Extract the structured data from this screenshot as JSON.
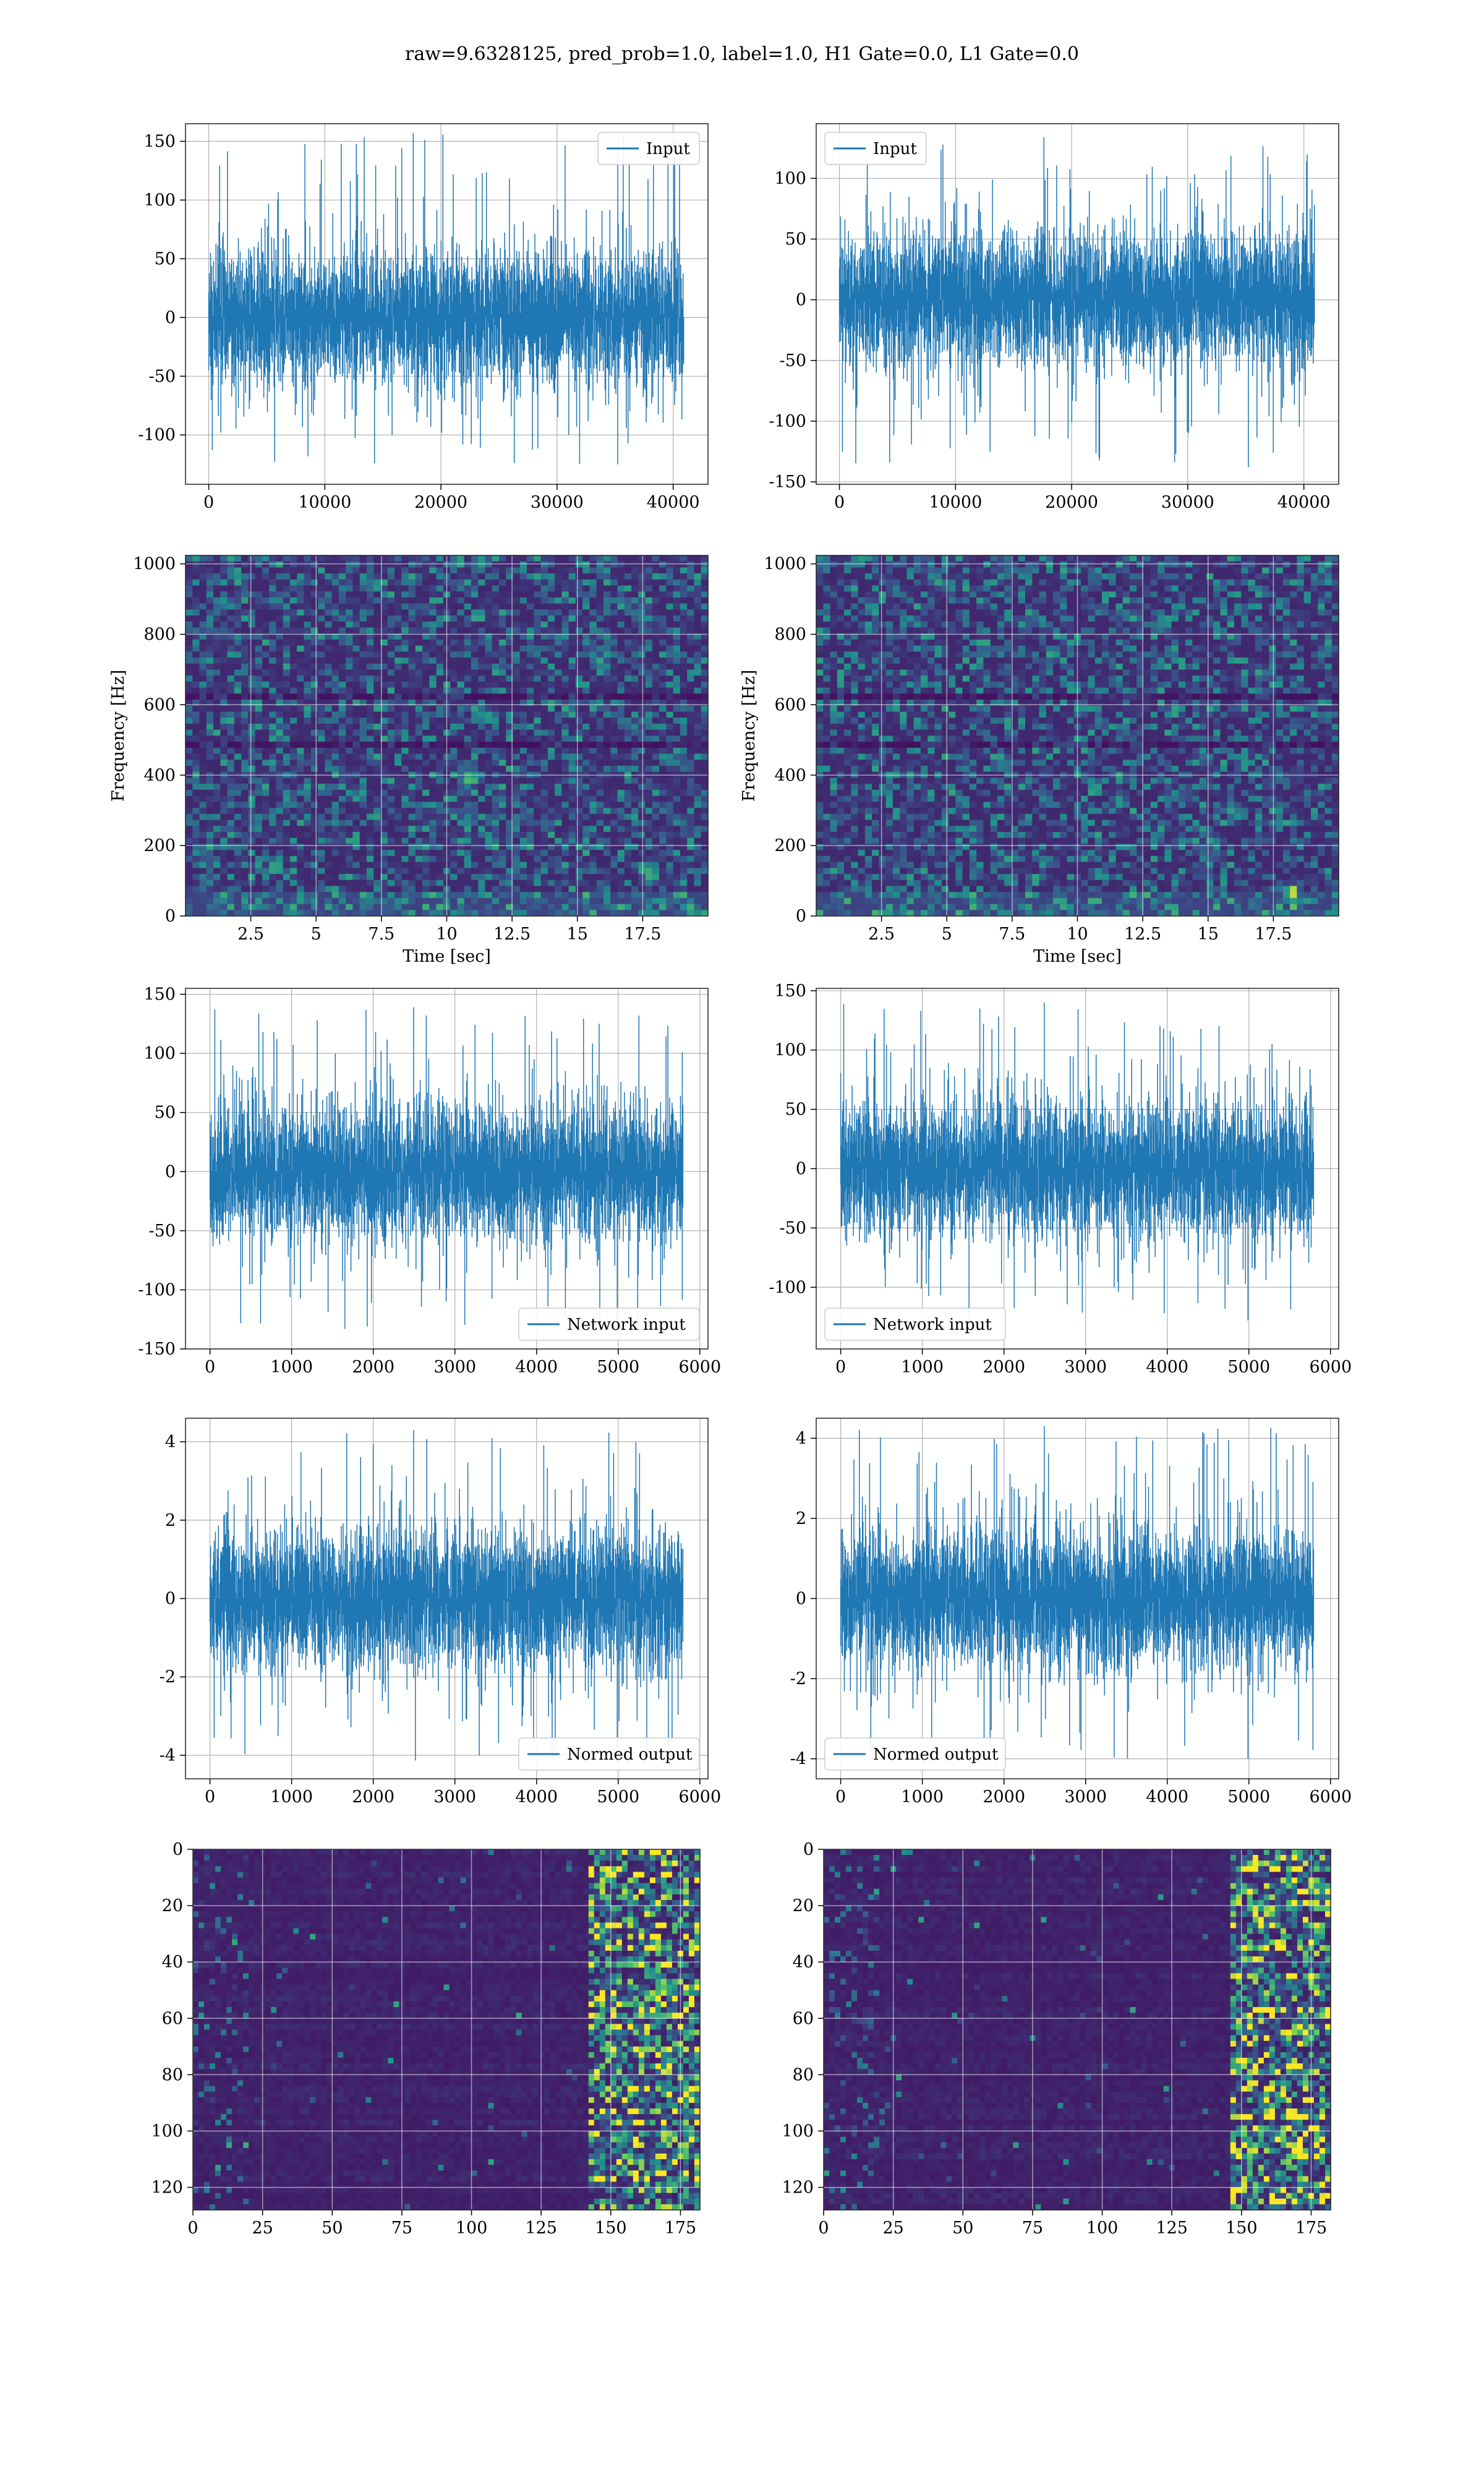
{
  "title": "raw=9.6328125, pred_prob=1.0, label=1.0, H1 Gate=0.0, L1 Gate=0.0",
  "colors": {
    "line": "#1f77b4",
    "grid": "#b0b0b0",
    "viridis": [
      "#440154",
      "#3b528b",
      "#21918c",
      "#5ec962",
      "#fde725"
    ]
  },
  "chart_data": [
    {
      "id": "input-h1",
      "type": "line",
      "col": 0,
      "row": 0,
      "series": [
        {
          "name": "Input",
          "n": 40960,
          "amplitude": 28,
          "min": -125,
          "max": 157
        }
      ],
      "xlim": [
        -2000,
        43000
      ],
      "ylim": [
        -142,
        165
      ],
      "xticks": [
        0,
        10000,
        20000,
        30000,
        40000
      ],
      "yticks": [
        -100,
        -50,
        0,
        50,
        100,
        150
      ],
      "legend": "top-right",
      "grid": true,
      "xlabel": "",
      "ylabel": ""
    },
    {
      "id": "input-l1",
      "type": "line",
      "col": 1,
      "row": 0,
      "series": [
        {
          "name": "Input",
          "n": 40960,
          "amplitude": 27,
          "min": -138,
          "max": 134
        }
      ],
      "xlim": [
        -2000,
        43000
      ],
      "ylim": [
        -152,
        145
      ],
      "xticks": [
        0,
        10000,
        20000,
        30000,
        40000
      ],
      "yticks": [
        -150,
        -100,
        -50,
        0,
        50,
        100
      ],
      "legend": "top-left",
      "grid": true,
      "xlabel": "",
      "ylabel": ""
    },
    {
      "id": "spectrogram-h1",
      "type": "heatmap",
      "col": 0,
      "row": 1,
      "xlim": [
        0,
        20
      ],
      "ylim": [
        0,
        1024
      ],
      "xticks": [
        2.5,
        5.0,
        7.5,
        10.0,
        12.5,
        15.0,
        17.5
      ],
      "yticks": [
        0,
        200,
        400,
        600,
        800,
        1000
      ],
      "xlabel": "Time [sec]",
      "ylabel": "Frequency [Hz]",
      "grid": true,
      "bright_spots": [
        [
          17.8,
          120
        ],
        [
          10.8,
          390
        ]
      ]
    },
    {
      "id": "spectrogram-l1",
      "type": "heatmap",
      "col": 1,
      "row": 1,
      "xlim": [
        0,
        20
      ],
      "ylim": [
        0,
        1024
      ],
      "xticks": [
        2.5,
        5.0,
        7.5,
        10.0,
        12.5,
        15.0,
        17.5
      ],
      "yticks": [
        0,
        200,
        400,
        600,
        800,
        1000
      ],
      "xlabel": "Time [sec]",
      "ylabel": "Frequency [Hz]",
      "grid": true,
      "bright_spots": [
        [
          18.2,
          60
        ]
      ]
    },
    {
      "id": "network-input-h1",
      "type": "line",
      "col": 0,
      "row": 2,
      "series": [
        {
          "name": "Network input",
          "n": 5800,
          "amplitude": 28,
          "min": -137,
          "max": 139
        }
      ],
      "xlim": [
        -300,
        6100
      ],
      "ylim": [
        -150,
        155
      ],
      "xticks": [
        0,
        1000,
        2000,
        3000,
        4000,
        5000,
        6000
      ],
      "yticks": [
        -150,
        -100,
        -50,
        0,
        50,
        100,
        150
      ],
      "legend": "bottom-right",
      "grid": true,
      "xlabel": "",
      "ylabel": ""
    },
    {
      "id": "network-input-l1",
      "type": "line",
      "col": 1,
      "row": 2,
      "series": [
        {
          "name": "Network input",
          "n": 5800,
          "amplitude": 28,
          "min": -128,
          "max": 140
        }
      ],
      "xlim": [
        -300,
        6100
      ],
      "ylim": [
        -152,
        152
      ],
      "xticks": [
        0,
        1000,
        2000,
        3000,
        4000,
        5000,
        6000
      ],
      "yticks": [
        -100,
        -50,
        0,
        50,
        100,
        150
      ],
      "legend": "bottom-left",
      "grid": true,
      "xlabel": "",
      "ylabel": ""
    },
    {
      "id": "normed-output-h1",
      "type": "line",
      "col": 0,
      "row": 3,
      "series": [
        {
          "name": "Normed output",
          "n": 5800,
          "amplitude": 0.85,
          "min": -4.2,
          "max": 4.3
        }
      ],
      "xlim": [
        -300,
        6100
      ],
      "ylim": [
        -4.6,
        4.6
      ],
      "xticks": [
        0,
        1000,
        2000,
        3000,
        4000,
        5000,
        6000
      ],
      "yticks": [
        -4,
        -2,
        0,
        2,
        4
      ],
      "legend": "bottom-right",
      "grid": true,
      "xlabel": "",
      "ylabel": ""
    },
    {
      "id": "normed-output-l1",
      "type": "line",
      "col": 1,
      "row": 3,
      "series": [
        {
          "name": "Normed output",
          "n": 5800,
          "amplitude": 0.85,
          "min": -4.0,
          "max": 4.3
        }
      ],
      "xlim": [
        -300,
        6100
      ],
      "ylim": [
        -4.5,
        4.5
      ],
      "xticks": [
        0,
        1000,
        2000,
        3000,
        4000,
        5000,
        6000
      ],
      "yticks": [
        -4,
        -2,
        0,
        2,
        4
      ],
      "legend": "bottom-left",
      "grid": true,
      "xlabel": "",
      "ylabel": ""
    },
    {
      "id": "feature-map-h1",
      "type": "heatmap",
      "col": 0,
      "row": 4,
      "xlim": [
        0,
        182
      ],
      "ylim": [
        128,
        0
      ],
      "rows": 128,
      "cols": 182,
      "xticks": [
        0,
        25,
        50,
        75,
        100,
        125,
        150,
        175
      ],
      "yticks": [
        0,
        20,
        40,
        60,
        80,
        100,
        120
      ],
      "xlabel": "",
      "ylabel": "",
      "grid": true,
      "active_from": 140
    },
    {
      "id": "feature-map-l1",
      "type": "heatmap",
      "col": 1,
      "row": 4,
      "xlim": [
        0,
        182
      ],
      "ylim": [
        128,
        0
      ],
      "rows": 128,
      "cols": 182,
      "xticks": [
        0,
        25,
        50,
        75,
        100,
        125,
        150,
        175
      ],
      "yticks": [
        0,
        20,
        40,
        60,
        80,
        100,
        120
      ],
      "xlabel": "",
      "ylabel": "",
      "grid": true,
      "active_from": 145
    }
  ]
}
